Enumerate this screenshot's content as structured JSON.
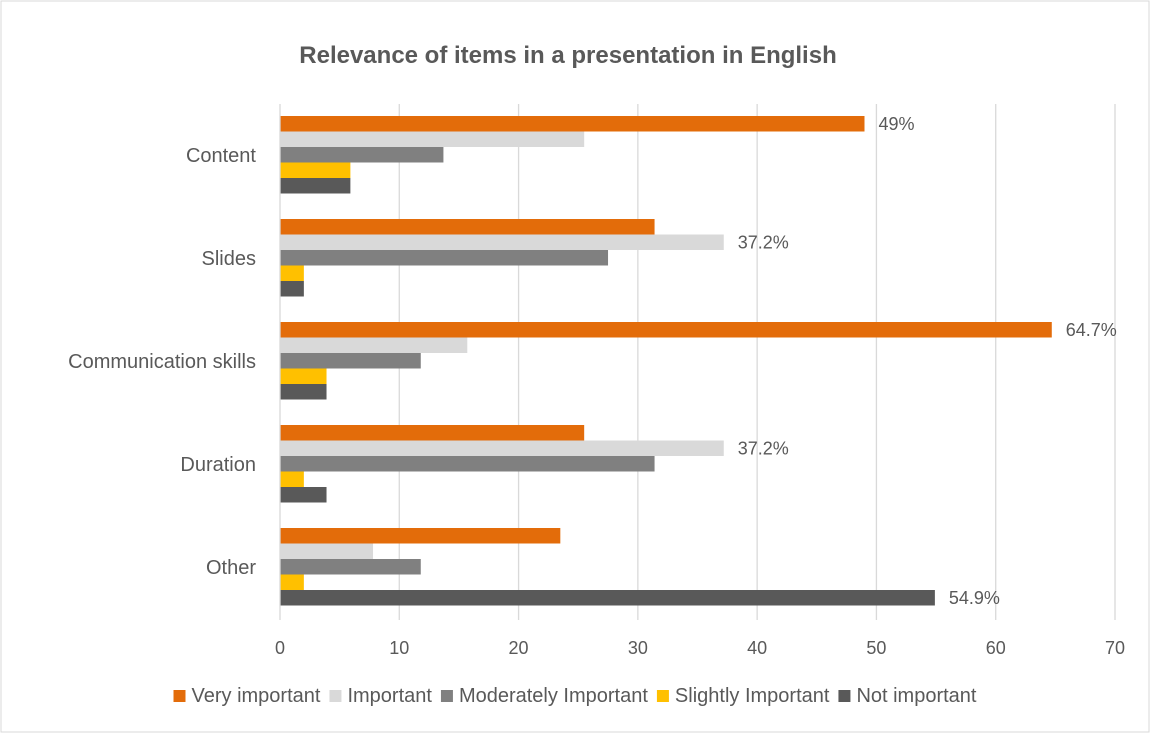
{
  "chart_data": {
    "type": "bar",
    "orientation": "horizontal",
    "title": "Relevance of items in a presentation in English",
    "xlabel": "",
    "ylabel": "",
    "xlim": [
      0,
      70
    ],
    "x_ticks": [
      "0",
      "10",
      "20",
      "30",
      "40",
      "50",
      "60",
      "70"
    ],
    "grid": "vertical",
    "legend_position": "bottom",
    "categories": [
      "Content",
      "Slides",
      "Communication skills",
      "Duration",
      "Other"
    ],
    "series": [
      {
        "name": "Very important",
        "color": "#E36C0A",
        "values": [
          49,
          31.4,
          64.7,
          25.5,
          23.5
        ]
      },
      {
        "name": "Important",
        "color": "#D9D9D9",
        "values": [
          25.5,
          37.2,
          15.7,
          37.2,
          7.8
        ]
      },
      {
        "name": "Moderately Important",
        "color": "#808080",
        "values": [
          13.7,
          27.5,
          11.8,
          31.4,
          11.8
        ]
      },
      {
        "name": "Slightly Important",
        "color": "#FFC000",
        "values": [
          5.9,
          2,
          3.9,
          2,
          2
        ]
      },
      {
        "name": "Not important",
        "color": "#595959",
        "values": [
          5.9,
          2,
          3.9,
          3.9,
          54.9
        ]
      }
    ],
    "data_labels": [
      {
        "category_index": 0,
        "series_index": 0,
        "text": "49%"
      },
      {
        "category_index": 1,
        "series_index": 1,
        "text": "37.2%"
      },
      {
        "category_index": 2,
        "series_index": 0,
        "text": "64.7%"
      },
      {
        "category_index": 3,
        "series_index": 1,
        "text": "37.2%"
      },
      {
        "category_index": 4,
        "series_index": 4,
        "text": "54.9%"
      }
    ]
  },
  "colors": {
    "gridline": "#D9D9D9",
    "text": "#595959",
    "title": "#595959",
    "border": "#D9D9D9"
  }
}
